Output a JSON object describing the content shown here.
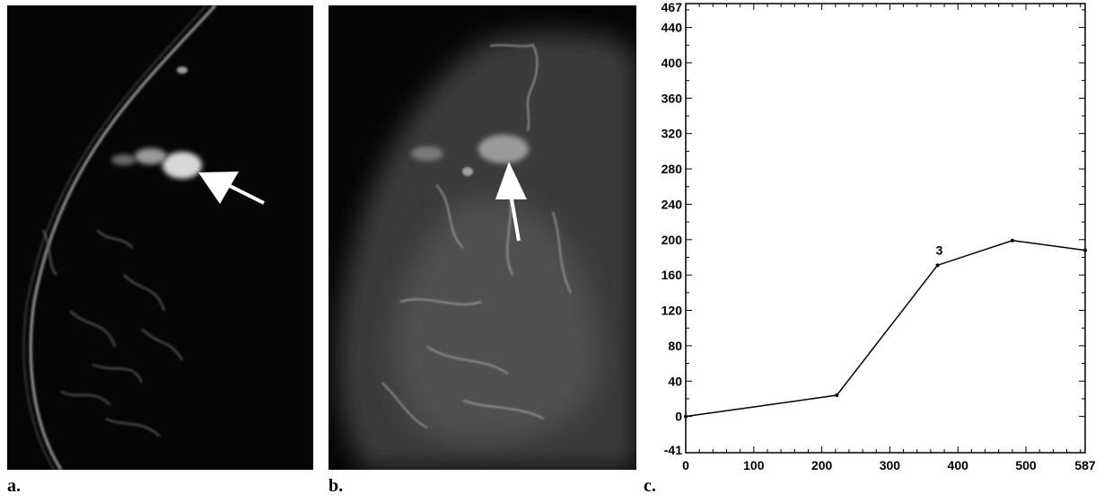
{
  "panels": {
    "a": {
      "label": "a."
    },
    "b": {
      "label": "b."
    },
    "c": {
      "label": "c."
    }
  },
  "icons": [
    "arrow-icon"
  ],
  "colors": {
    "background": "#ffffff",
    "mri_background": "#050505",
    "arrow": "#ffffff",
    "plot_line": "#000000"
  },
  "chart_data": {
    "type": "line",
    "title": "",
    "xlabel": "",
    "ylabel": "",
    "xlim": [
      0,
      587
    ],
    "ylim": [
      -41,
      467
    ],
    "x_ticks": [
      0,
      100,
      200,
      300,
      400,
      500,
      587
    ],
    "y_ticks": [
      -41,
      0,
      40,
      80,
      120,
      160,
      200,
      240,
      280,
      320,
      360,
      400,
      440,
      467
    ],
    "grid": false,
    "series": [
      {
        "x": [
          0,
          222,
          370,
          480,
          587
        ],
        "y": [
          0,
          24,
          171,
          199,
          188
        ]
      }
    ],
    "annotations": [
      {
        "text": "3",
        "x": 370,
        "y": 171
      }
    ]
  }
}
